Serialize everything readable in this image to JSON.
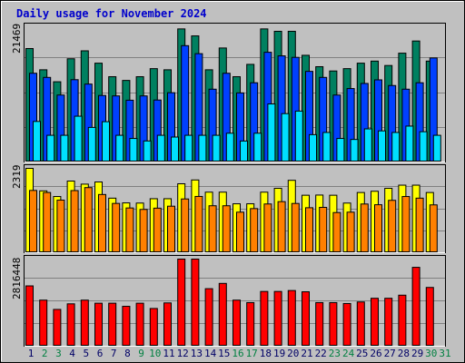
{
  "colors": {
    "background": "#c0c0c0",
    "title": "#0000cc",
    "weekday_label": "#000066",
    "weekend_label": "#008040",
    "hits": "#008060",
    "files": "#0040ff",
    "pages": "#00e0ff",
    "visits": "#ffff00",
    "sites": "#ff8000",
    "kbytes": "#ff0000"
  },
  "chart_data": {
    "type": "bar",
    "title": "Daily usage for November 2024",
    "categories": [
      "1",
      "2",
      "3",
      "4",
      "5",
      "6",
      "7",
      "8",
      "9",
      "10",
      "11",
      "12",
      "13",
      "14",
      "15",
      "16",
      "17",
      "18",
      "19",
      "20",
      "21",
      "22",
      "23",
      "24",
      "25",
      "26",
      "27",
      "28",
      "29",
      "30",
      "31"
    ],
    "weekend_days": [
      "2",
      "3",
      "9",
      "10",
      "16",
      "17",
      "23",
      "24",
      "30",
      "31"
    ],
    "panels": [
      {
        "id": "top",
        "ylabel": "21469",
        "ymax": 21469,
        "series": [
          {
            "key": "hits",
            "values": [
              18010,
              14640,
              12740,
              16390,
              17650,
              15690,
              13540,
              12950,
              13540,
              14820,
              14640,
              21130,
              20020,
              14640,
              18100,
              13540,
              15500,
              21130,
              20750,
              20750,
              16940,
              15130,
              14450,
              14820,
              15690,
              16020,
              15320,
              17280,
              19210,
              16020,
              null
            ]
          },
          {
            "key": "files",
            "values": [
              14090,
              13430,
              10630,
              13070,
              12370,
              10560,
              10490,
              9810,
              10490,
              9840,
              11000,
              18470,
              17200,
              11560,
              14090,
              10970,
              12580,
              17420,
              16850,
              16610,
              14390,
              13430,
              10630,
              11660,
              12470,
              13040,
              12140,
              11560,
              12580,
              16520,
              null
            ]
          },
          {
            "key": "pages",
            "values": [
              6440,
              4240,
              4240,
              7270,
              5490,
              6400,
              4240,
              3740,
              3340,
              4240,
              3960,
              4240,
              4240,
              4240,
              4570,
              3330,
              4570,
              9220,
              7680,
              8080,
              4340,
              4690,
              3740,
              3580,
              5260,
              4940,
              4690,
              5700,
              4810,
              4240,
              null
            ]
          }
        ]
      },
      {
        "id": "middle",
        "ylabel": "2319",
        "ymax": 2319,
        "series": [
          {
            "key": "visits",
            "values": [
              2319,
              1700,
              1545,
              1970,
              1885,
              1945,
              1500,
              1370,
              1365,
              1485,
              1485,
              1895,
              2000,
              1665,
              1665,
              1345,
              1345,
              1665,
              1770,
              1990,
              1580,
              1585,
              1580,
              1365,
              1655,
              1690,
              1770,
              1857,
              1857,
              1655,
              null
            ]
          },
          {
            "key": "sites",
            "values": [
              1712,
              1655,
              1446,
              1708,
              1790,
              1600,
              1355,
              1230,
              1190,
              1225,
              1279,
              1478,
              1547,
              1291,
              1291,
              1115,
              1213,
              1340,
              1404,
              1354,
              1237,
              1247,
              1104,
              1115,
              1339,
              1319,
              1440,
              1545,
              1500,
              1315,
              null
            ]
          }
        ]
      },
      {
        "id": "bottom",
        "ylabel": "2816448",
        "ymax": 2816448,
        "series": [
          {
            "key": "kbytes",
            "values": [
              1950000,
              1490000,
              1190000,
              1370000,
              1490000,
              1390000,
              1390000,
              1290000,
              1390000,
              1220000,
              1400000,
              2816448,
              2816448,
              1860000,
              2030000,
              1490000,
              1410000,
              1770000,
              1770000,
              1800000,
              1760000,
              1410000,
              1410000,
              1380000,
              1430000,
              1550000,
              1550000,
              1650000,
              2550000,
              1900000,
              null
            ]
          }
        ]
      }
    ]
  }
}
